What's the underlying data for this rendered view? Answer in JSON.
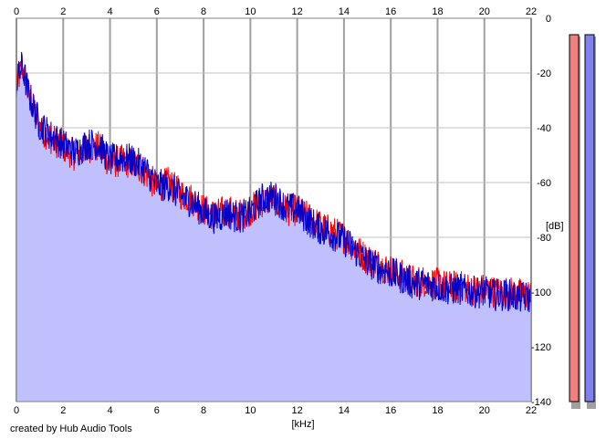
{
  "credit": "created by Hub Audio Tools",
  "chart_data": {
    "type": "line",
    "xlabel": "[kHz]",
    "ylabel": "[dB]",
    "xlim": [
      0,
      22
    ],
    "ylim": [
      -140,
      0
    ],
    "x_ticks": [
      "0",
      "2",
      "4",
      "6",
      "8",
      "10",
      "12",
      "14",
      "16",
      "18",
      "20",
      "22"
    ],
    "y_ticks": [
      "0",
      "-20",
      "-40",
      "-60",
      "-80",
      "-100",
      "-120",
      "-140"
    ],
    "grid": true,
    "x": [
      0.0,
      0.25,
      0.5,
      0.75,
      1.0,
      1.5,
      2.0,
      2.5,
      3.0,
      3.5,
      4.0,
      4.5,
      5.0,
      5.5,
      6.0,
      6.5,
      7.0,
      7.5,
      8.0,
      8.5,
      9.0,
      9.5,
      10.0,
      10.5,
      11.0,
      11.5,
      12.0,
      12.5,
      13.0,
      13.5,
      14.0,
      14.5,
      15.0,
      15.5,
      16.0,
      16.5,
      17.0,
      17.5,
      18.0,
      18.5,
      19.0,
      19.5,
      20.0,
      20.5,
      21.0,
      21.5,
      22.0
    ],
    "series": [
      {
        "color": "#ff0000",
        "values": [
          -24,
          -18,
          -27,
          -34,
          -40,
          -44,
          -47,
          -50,
          -47,
          -47,
          -53,
          -52,
          -53,
          -56,
          -62,
          -60,
          -64,
          -66,
          -70,
          -72,
          -70,
          -72,
          -70,
          -67,
          -66,
          -70,
          -70,
          -73,
          -76,
          -78,
          -80,
          -84,
          -88,
          -90,
          -92,
          -94,
          -96,
          -96,
          -97,
          -98,
          -98,
          -99,
          -99,
          -100,
          -100,
          -101,
          -101
        ]
      },
      {
        "color": "#0000cc",
        "values": [
          -24,
          -17,
          -27,
          -33,
          -39,
          -43,
          -46,
          -49,
          -46,
          -46,
          -52,
          -51,
          -52,
          -55,
          -61,
          -61,
          -65,
          -67,
          -71,
          -73,
          -71,
          -73,
          -71,
          -66,
          -65,
          -69,
          -70,
          -74,
          -77,
          -79,
          -81,
          -85,
          -89,
          -91,
          -93,
          -95,
          -97,
          -97,
          -98,
          -99,
          -99,
          -100,
          -100,
          -101,
          -101,
          -102,
          -102
        ]
      }
    ],
    "fill_color": "#c0c0ff",
    "meters": [
      {
        "channel": "left",
        "color": "#f08080"
      },
      {
        "channel": "right",
        "color": "#8080f0"
      }
    ]
  }
}
